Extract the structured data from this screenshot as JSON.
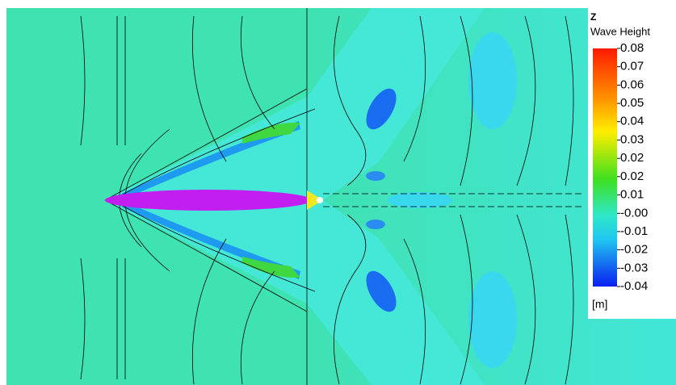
{
  "chart_data": {
    "type": "contour",
    "axis_label": "Z",
    "title": "Wave Height",
    "unit": "[m]",
    "clim": [
      -0.04,
      0.08
    ],
    "cticks": [
      {
        "value": 0.08,
        "label": "0.08"
      },
      {
        "value": 0.0708,
        "label": "0.07"
      },
      {
        "value": 0.0615,
        "label": "0.06"
      },
      {
        "value": 0.0523,
        "label": "0.05"
      },
      {
        "value": 0.0431,
        "label": "0.04"
      },
      {
        "value": 0.0338,
        "label": "0.03"
      },
      {
        "value": 0.0246,
        "label": "0.02"
      },
      {
        "value": 0.0154,
        "label": "0.02"
      },
      {
        "value": 0.0062,
        "label": "0.01"
      },
      {
        "value": -0.0031,
        "label": "-0.00"
      },
      {
        "value": -0.0123,
        "label": "-0.01"
      },
      {
        "value": -0.0215,
        "label": "-0.02"
      },
      {
        "value": -0.0308,
        "label": "-0.03"
      },
      {
        "value": -0.04,
        "label": "-0.04"
      }
    ]
  }
}
